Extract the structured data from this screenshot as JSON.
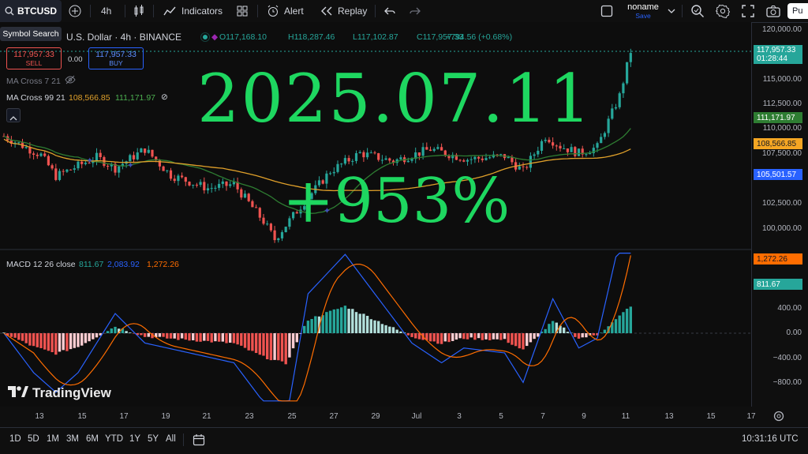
{
  "toolbar": {
    "symbol": "BTCUSD",
    "interval": "4h",
    "indicators_label": "Indicators",
    "alert_label": "Alert",
    "replay_label": "Replay",
    "layout_name": "noname",
    "layout_status": "Save",
    "publish_label": "Pu"
  },
  "tooltip": "Symbol Search",
  "header": {
    "title": "U.S. Dollar · 4h · BINANCE",
    "o": "O117,168.10",
    "h": "H118,287.46",
    "l": "L117,102.87",
    "c": "C117,957.33",
    "change": "+794.56 (+0.68%)"
  },
  "trade": {
    "sell_price": "117,957.33",
    "sell_label": "SELL",
    "spread": "0.00",
    "buy_price": "117,957.33",
    "buy_label": "BUY"
  },
  "ma1": {
    "label": "MA Cross 7 21"
  },
  "ma2": {
    "label": "MA Cross 99 21",
    "v1": "108,566.85",
    "v2": "111,171.97"
  },
  "macd": {
    "label": "MACD 12 26 close",
    "v1": "811.67",
    "v2": "2,083.92",
    "v3": "1,272.26"
  },
  "overlay": {
    "date": "2025.07.11",
    "pct": "+953%"
  },
  "price_ticks": [
    "120,000.00",
    "115,000.00",
    "112,500.00",
    "110,000.00",
    "107,500.00",
    "102,500.00",
    "100,000.00"
  ],
  "macd_ticks": [
    "400.00",
    "0.00",
    "−400.00",
    "−800.00"
  ],
  "price_badges": {
    "last": "117,957.33",
    "countdown": "01:28:44",
    "ma_green": "111,171.97",
    "ma_orange": "108,566.85",
    "blue": "105,501.57",
    "macd_orange": "1,272.26",
    "macd_green": "811.67"
  },
  "x_ticks": [
    "13",
    "15",
    "17",
    "19",
    "21",
    "23",
    "25",
    "27",
    "29",
    "Jul",
    "3",
    "5",
    "7",
    "9",
    "11",
    "13",
    "15",
    "17"
  ],
  "ranges": [
    "1D",
    "5D",
    "1M",
    "3M",
    "6M",
    "YTD",
    "1Y",
    "5Y",
    "All"
  ],
  "clock": "10:31:16 UTC",
  "logo": "TradingView",
  "colors": {
    "up": "#26a69a",
    "down": "#ef5350",
    "ma_fast": "#2e7d32",
    "ma_slow": "#e0a02a",
    "macd": "#2962ff",
    "signal": "#ff6d00",
    "overlay": "#1ed760"
  }
}
